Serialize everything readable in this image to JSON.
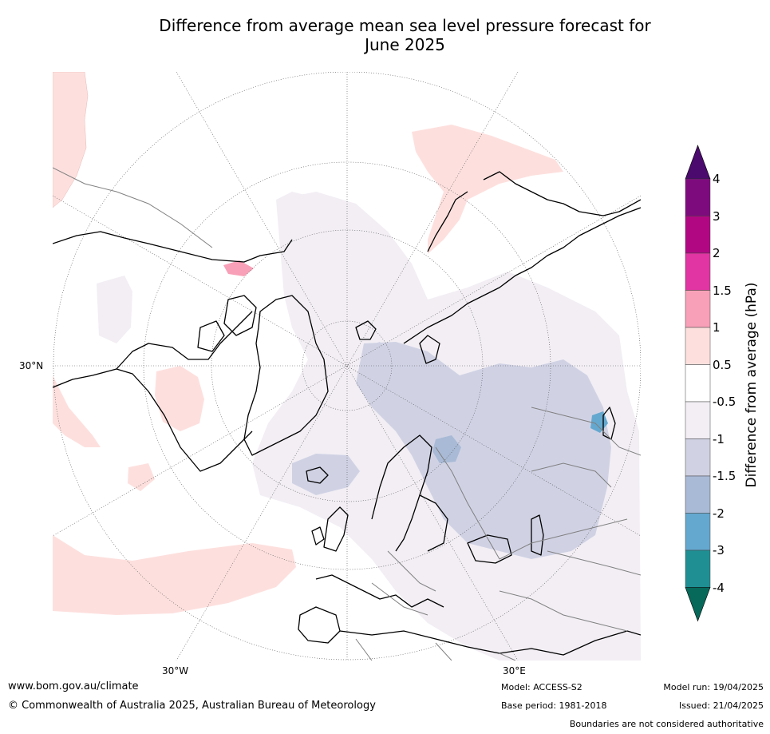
{
  "title": {
    "line1": "Difference from average mean sea level pressure forecast for",
    "line2": "June 2025"
  },
  "map": {
    "labels": {
      "lat_30n": "30°N",
      "lon_30w": "30°W",
      "lon_30e": "30°E"
    },
    "anomaly_regions": [
      {
        "region": "North Pacific / Aleutians",
        "level": "0.5 to 1"
      },
      {
        "region": "Alaska north coast",
        "level": "1 to 1.5"
      },
      {
        "region": "Eastern North Pacific",
        "level": "0.5 to 1"
      },
      {
        "region": "Tropical Atlantic / Caribbean",
        "level": "0.5 to 1"
      },
      {
        "region": "Greenland / Arctic Canada",
        "level": "-0.5 to -1"
      },
      {
        "region": "Scandinavia / Russia",
        "level": "-1 to -1.5"
      },
      {
        "region": "Western Russia",
        "level": "-1.5 to -2"
      },
      {
        "region": "Central Asia",
        "level": "-1.5 to -2"
      }
    ]
  },
  "colorbar": {
    "title": "Difference from average (hPa)",
    "ticks": [
      "4",
      "3",
      "2",
      "1.5",
      "1",
      "0.5",
      "-0.5",
      "-1",
      "-1.5",
      "-2",
      "-3",
      "-4"
    ],
    "colors": [
      "#4b0a6e",
      "#7e0b7e",
      "#b10783",
      "#e035a2",
      "#f8a0b7",
      "#fde0de",
      "#ffffff",
      "#f2eef4",
      "#d0d2e4",
      "#a9bad6",
      "#64a8cf",
      "#1f8f93",
      "#06695a"
    ]
  },
  "footer": {
    "website": "www.bom.gov.au/climate",
    "copyright": "© Commonwealth of Australia 2025, Australian Bureau of Meteorology",
    "model": "Model: ACCESS-S2",
    "base_period": "Base period: 1981-2018",
    "model_run": "Model run: 19/04/2025",
    "issued": "Issued: 21/04/2025",
    "disclaimer": "Boundaries are not considered authoritative"
  }
}
